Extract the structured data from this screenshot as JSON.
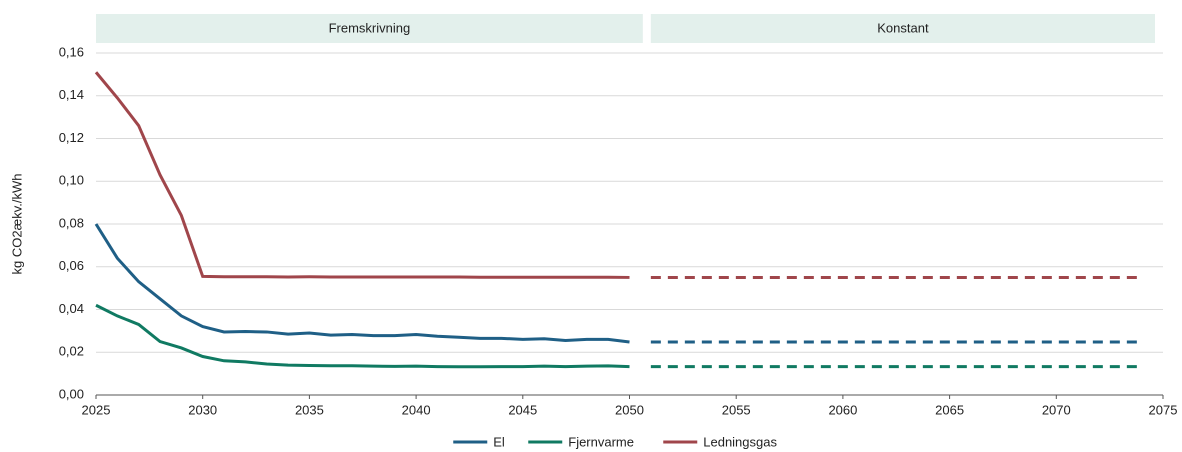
{
  "chart_data": {
    "type": "line",
    "y_label": "kg CO2ækv./kWh",
    "panel_labels": [
      "Fremskrivning",
      "Konstant"
    ],
    "x": [
      2025,
      2026,
      2027,
      2028,
      2029,
      2030,
      2031,
      2032,
      2033,
      2034,
      2035,
      2036,
      2037,
      2038,
      2039,
      2040,
      2041,
      2042,
      2043,
      2044,
      2045,
      2046,
      2047,
      2048,
      2049,
      2050
    ],
    "x_constant": [
      2051,
      2074
    ],
    "xlim": [
      2025,
      2075
    ],
    "xticks": [
      2025,
      2030,
      2035,
      2040,
      2045,
      2050,
      2055,
      2060,
      2065,
      2070,
      2075
    ],
    "ylim": [
      0,
      0.16
    ],
    "yticks": [
      {
        "value": 0,
        "label": "0,00"
      },
      {
        "value": 0.02,
        "label": "0,02"
      },
      {
        "value": 0.04,
        "label": "0,04"
      },
      {
        "value": 0.06,
        "label": "0,06"
      },
      {
        "value": 0.08,
        "label": "0,08"
      },
      {
        "value": 0.1,
        "label": "0,10"
      },
      {
        "value": 0.12,
        "label": "0,12"
      },
      {
        "value": 0.14,
        "label": "0,14"
      },
      {
        "value": 0.16,
        "label": "0,16"
      }
    ],
    "grid": true,
    "legend": "bottom",
    "series": [
      {
        "name": "El",
        "color": "#1f5f86",
        "values": [
          0.08,
          0.064,
          0.053,
          0.045,
          0.037,
          0.032,
          0.0295,
          0.0297,
          0.0295,
          0.0285,
          0.029,
          0.028,
          0.0283,
          0.0278,
          0.0278,
          0.0283,
          0.0275,
          0.027,
          0.0265,
          0.0265,
          0.026,
          0.0263,
          0.0255,
          0.026,
          0.026,
          0.0248
        ],
        "constant_values": [
          0.0248,
          0.0248
        ]
      },
      {
        "name": "Fjernvarme",
        "color": "#107a62",
        "values": [
          0.042,
          0.037,
          0.033,
          0.025,
          0.022,
          0.018,
          0.016,
          0.0155,
          0.0145,
          0.014,
          0.0138,
          0.0137,
          0.0137,
          0.0135,
          0.0134,
          0.0135,
          0.0133,
          0.0132,
          0.0132,
          0.0133,
          0.0133,
          0.0135,
          0.0133,
          0.0135,
          0.0136,
          0.0133
        ],
        "constant_values": [
          0.0133,
          0.0133
        ]
      },
      {
        "name": "Ledningsgas",
        "color": "#a0464b",
        "values": [
          0.151,
          0.139,
          0.126,
          0.103,
          0.084,
          0.0555,
          0.0553,
          0.0553,
          0.0553,
          0.0552,
          0.0553,
          0.0552,
          0.0552,
          0.0552,
          0.0552,
          0.0552,
          0.0552,
          0.0552,
          0.0551,
          0.0551,
          0.0551,
          0.0551,
          0.0551,
          0.0551,
          0.0551,
          0.055
        ],
        "constant_values": [
          0.055,
          0.055
        ]
      }
    ]
  }
}
